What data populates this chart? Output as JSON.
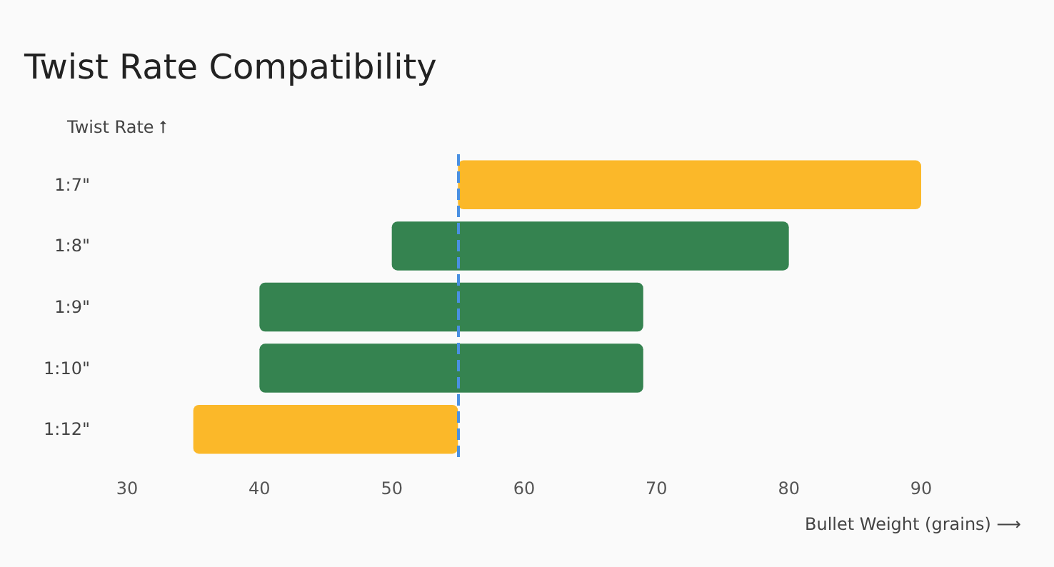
{
  "chart_data": {
    "type": "bar",
    "orientation": "horizontal",
    "title": "Twist Rate Compatibility",
    "xlabel": "Bullet Weight (grains) ⟶",
    "ylabel": "Twist Rate ⭡",
    "categories": [
      "1:7\"",
      "1:8\"",
      "1:9\"",
      "1:10\"",
      "1:12\""
    ],
    "base": [
      55,
      50,
      40,
      40,
      35
    ],
    "values": [
      35,
      30,
      29,
      29,
      20
    ],
    "colors": [
      "#fbb829",
      "#358350",
      "#358350",
      "#358350",
      "#fbb829"
    ],
    "xlim": [
      30,
      90
    ],
    "xticks": [
      30,
      40,
      50,
      60,
      70,
      80,
      90
    ],
    "grid": false,
    "ref_lines": [
      {
        "axis": "x",
        "value": 55,
        "color": "#4a90e2",
        "line_style": "dashed"
      }
    ]
  }
}
